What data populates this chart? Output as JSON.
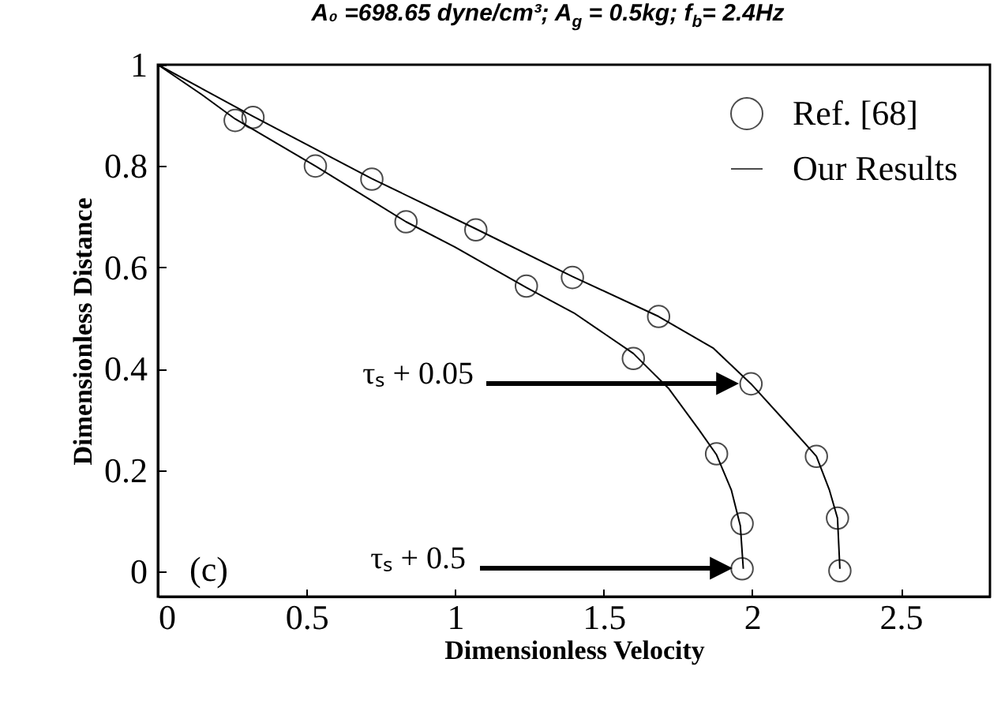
{
  "chart_data": {
    "type": "line",
    "title": "A₀ =698.65 dyne/cm³; A$_{g}$ = 0.5kg; f$_{b}$= 2.4Hz",
    "xlabel": "Dimensionless Velocity",
    "ylabel": "Dimensionless Distance",
    "xlim": [
      0,
      2.8
    ],
    "ylim": [
      -0.05,
      1
    ],
    "xticks": [
      0,
      0.5,
      1,
      1.5,
      2,
      2.5
    ],
    "yticks": [
      0,
      0.2,
      0.4,
      0.6,
      0.8,
      1
    ],
    "legend": "top right",
    "series": [
      {
        "name": "Ref. [68]",
        "type": "scatter",
        "marker": "circle",
        "color": "#000000",
        "x": [
          0.26,
          0.32,
          0.53,
          0.72,
          0.835,
          1.07,
          1.24,
          1.395,
          1.6,
          1.685,
          1.88,
          1.996,
          1.966,
          2.216,
          1.966,
          2.287,
          2.295
        ],
        "values": [
          0.89,
          0.896,
          0.8,
          0.774,
          0.69,
          0.674,
          0.563,
          0.58,
          0.42,
          0.503,
          0.232,
          0.37,
          0.094,
          0.227,
          0.005,
          0.105,
          0.001
        ]
      },
      {
        "name": "Our Results",
        "color": "#000000",
        "x": [
          0,
          0.15,
          0.26,
          0.53,
          0.835,
          1.0,
          1.24,
          1.4,
          1.6,
          1.72,
          1.82,
          1.88,
          1.93,
          1.96,
          1.97
        ],
        "values": [
          1,
          0.94,
          0.893,
          0.8,
          0.69,
          0.64,
          0.56,
          0.51,
          0.43,
          0.36,
          0.28,
          0.23,
          0.16,
          0.09,
          0.005
        ]
      },
      {
        "color": "#000000",
        "x": [
          0,
          0.32,
          0.72,
          1.07,
          1.395,
          1.685,
          1.87,
          1.996,
          2.12,
          2.216,
          2.26,
          2.287,
          2.295
        ],
        "values": [
          1,
          0.898,
          0.775,
          0.676,
          0.582,
          0.503,
          0.44,
          0.37,
          0.29,
          0.227,
          0.16,
          0.105,
          0.005
        ]
      }
    ],
    "annotations": [
      "τₛ + 0.05",
      "τₛ + 0.5",
      "(c)"
    ]
  }
}
